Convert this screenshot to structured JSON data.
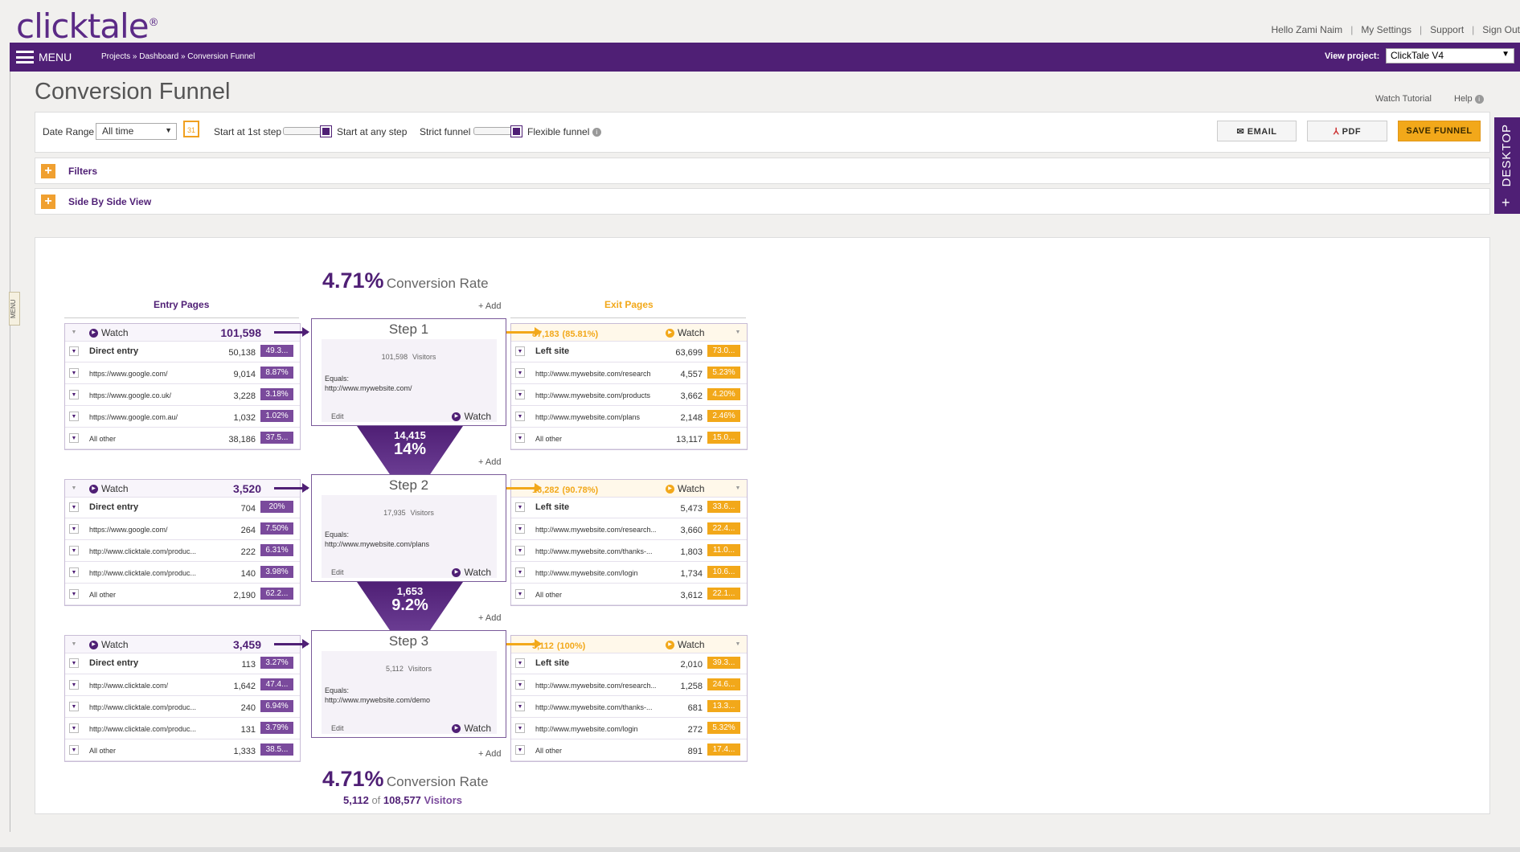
{
  "app": {
    "logo": "clicktale",
    "logo_mark": "®"
  },
  "user_nav": {
    "greeting": "Hello Zami Naim",
    "settings": "My Settings",
    "support": "Support",
    "signout": "Sign Out",
    "sep": "|"
  },
  "nav": {
    "menu": "MENU",
    "breadcrumb": "Projects » Dashboard » Conversion Funnel",
    "view_project_label": "View project:",
    "view_project_value": "ClickTale V4",
    "side_menu_tab": "MENU"
  },
  "page": {
    "title": "Conversion Funnel",
    "watch_tutorial": "Watch Tutorial",
    "help": "Help",
    "info": "i"
  },
  "toolbar": {
    "date_range_label": "Date Range",
    "date_range_value": "All time",
    "calendar_day": "31",
    "start_1st": "Start at 1st step",
    "start_any": "Start at any step",
    "strict": "Strict funnel",
    "flexible": "Flexible funnel",
    "email": "EMAIL",
    "pdf": "PDF",
    "save": "SAVE FUNNEL"
  },
  "accordions": {
    "filters": "Filters",
    "side_by_side": "Side By Side View",
    "plus": "+"
  },
  "desktop_tab": {
    "label": "DESKTOP",
    "plus": "+"
  },
  "funnel": {
    "top_rate": "4.71%",
    "top_rate_label": "Conversion Rate",
    "entry_header": "Entry Pages",
    "exit_header": "Exit Pages",
    "add": "+ Add",
    "bottom_rate": "4.71%",
    "bottom_rate_label": "Conversion Rate",
    "bottom_converted": "5,112",
    "bottom_of": "of",
    "bottom_total": "108,577",
    "bottom_visitors": "Visitors",
    "watch": "Watch",
    "visitors_label": "Visitors",
    "equals_label": "Equals:",
    "edit": "Edit",
    "steps": [
      {
        "title": "Step 1",
        "visitors": "101,598",
        "url": "http://www.mywebsite.com/",
        "entry": {
          "total": "101,598",
          "rows": [
            [
              "Direct entry",
              "50,138",
              "49.3..."
            ],
            [
              "https://www.google.com/",
              "9,014",
              "8.87%"
            ],
            [
              "https://www.google.co.uk/",
              "3,228",
              "3.18%"
            ],
            [
              "https://www.google.com.au/",
              "1,032",
              "1.02%"
            ],
            [
              "All other",
              "38,186",
              "37.5..."
            ]
          ]
        },
        "exit": {
          "total": "87,183",
          "pct": "(85.81%)",
          "rows": [
            [
              "Left site",
              "63,699",
              "73.0..."
            ],
            [
              "http://www.mywebsite.com/research",
              "4,557",
              "5.23%"
            ],
            [
              "http://www.mywebsite.com/products",
              "3,662",
              "4.20%"
            ],
            [
              "http://www.mywebsite.com/plans",
              "2,148",
              "2.46%"
            ],
            [
              "All other",
              "13,117",
              "15.0..."
            ]
          ]
        }
      },
      {
        "title": "Step 2",
        "visitors": "17,935",
        "url": "http://www.mywebsite.com/plans",
        "entry": {
          "total": "3,520",
          "rows": [
            [
              "Direct entry",
              "704",
              "20%"
            ],
            [
              "https://www.google.com/",
              "264",
              "7.50%"
            ],
            [
              "http://www.clicktale.com/produc...",
              "222",
              "6.31%"
            ],
            [
              "http://www.clicktale.com/produc...",
              "140",
              "3.98%"
            ],
            [
              "All other",
              "2,190",
              "62.2..."
            ]
          ]
        },
        "exit": {
          "total": "16,282",
          "pct": "(90.78%)",
          "rows": [
            [
              "Left site",
              "5,473",
              "33.6..."
            ],
            [
              "http://www.mywebsite.com/research...",
              "3,660",
              "22.4..."
            ],
            [
              "http://www.mywebsite.com/thanks-...",
              "1,803",
              "11.0..."
            ],
            [
              "http://www.mywebsite.com/login",
              "1,734",
              "10.6..."
            ],
            [
              "All other",
              "3,612",
              "22.1..."
            ]
          ]
        }
      },
      {
        "title": "Step 3",
        "visitors": "5,112",
        "url": "http://www.mywebsite.com/demo",
        "entry": {
          "total": "3,459",
          "rows": [
            [
              "Direct entry",
              "113",
              "3.27%"
            ],
            [
              "http://www.clicktale.com/",
              "1,642",
              "47.4..."
            ],
            [
              "http://www.clicktale.com/produc...",
              "240",
              "6.94%"
            ],
            [
              "http://www.clicktale.com/produc...",
              "131",
              "3.79%"
            ],
            [
              "All other",
              "1,333",
              "38.5..."
            ]
          ]
        },
        "exit": {
          "total": "5,112",
          "pct": "(100%)",
          "rows": [
            [
              "Left site",
              "2,010",
              "39.3..."
            ],
            [
              "http://www.mywebsite.com/research...",
              "1,258",
              "24.6..."
            ],
            [
              "http://www.mywebsite.com/thanks-...",
              "681",
              "13.3..."
            ],
            [
              "http://www.mywebsite.com/login",
              "272",
              "5.32%"
            ],
            [
              "All other",
              "891",
              "17.4..."
            ]
          ]
        }
      }
    ],
    "transitions": [
      {
        "count": "14,415",
        "pct": "14%"
      },
      {
        "count": "1,653",
        "pct": "9.2%"
      }
    ]
  },
  "colors": {
    "purple": "#4f1f75",
    "orange": "#f2a81a"
  }
}
